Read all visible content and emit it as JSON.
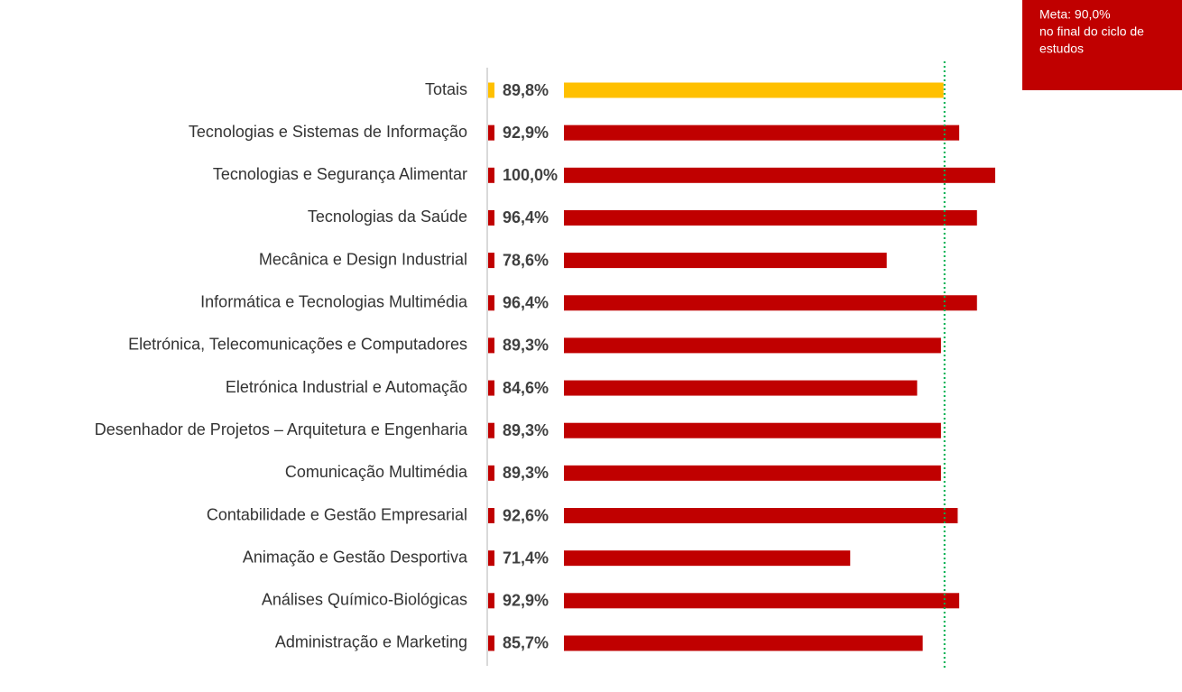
{
  "chart_data": {
    "type": "barh",
    "categories": [
      "Totais",
      "Tecnologias e Sistemas de Informação",
      "Tecnologias e Segurança Alimentar",
      "Tecnologias da Saúde",
      "Mecânica e Design Industrial",
      "Informática e Tecnologias Multimédia",
      "Eletrónica, Telecomunicações e Computadores",
      "Eletrónica Industrial e Automação",
      "Desenhador de Projetos – Arquitetura e Engenharia",
      "Comunicação Multimédia",
      "Contabilidade e Gestão Empresarial",
      "Animação e Gestão Desportiva",
      "Análises Químico-Biológicas",
      "Administração e Marketing"
    ],
    "values": [
      89.8,
      92.9,
      100.0,
      96.4,
      78.6,
      96.4,
      89.3,
      84.6,
      89.3,
      89.3,
      92.6,
      71.4,
      92.9,
      85.7
    ],
    "value_labels": [
      "89,8%",
      "92,9%",
      "100,0%",
      "96,4%",
      "78,6%",
      "96,4%",
      "89,3%",
      "84,6%",
      "89,3%",
      "89,3%",
      "92,6%",
      "71,4%",
      "92,9%",
      "85,7%"
    ],
    "colors": [
      "#ffc000",
      "#c00000",
      "#c00000",
      "#c00000",
      "#c00000",
      "#c00000",
      "#c00000",
      "#c00000",
      "#c00000",
      "#c00000",
      "#c00000",
      "#c00000",
      "#c00000",
      "#c00000"
    ],
    "xlim": [
      0,
      100
    ],
    "target": 90,
    "target_color": "#00b050",
    "annotation": [
      "Meta: 90,0%",
      "no final do ciclo de",
      "estudos"
    ]
  }
}
